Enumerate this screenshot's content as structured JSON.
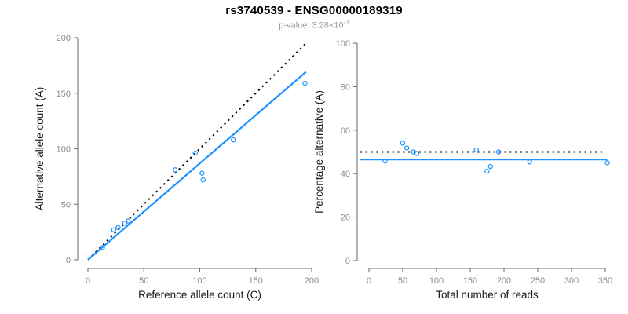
{
  "header": {
    "title": "rs3740539 - ENSG00000189319",
    "subtitle_prefix": "p-value: 3.28×10",
    "subtitle_exponent": "-3"
  },
  "colors": {
    "accent_blue": "#1E90FF",
    "dotted_black": "#000000",
    "axis_line": "#737373",
    "tick_label": "#8C8C8C",
    "axis_title": "#1A1A1A",
    "subtitle_gray": "#999999",
    "title_black": "#000000"
  },
  "chart_data": [
    {
      "name": "allele-counts-scatter",
      "type": "scatter",
      "title": "",
      "xlabel": "Reference allele count (C)",
      "ylabel": "Alternative allele count (A)",
      "xlim": [
        0,
        200
      ],
      "ylim": [
        0,
        200
      ],
      "xticks": [
        0,
        50,
        100,
        150,
        200
      ],
      "yticks": [
        0,
        50,
        100,
        150,
        200
      ],
      "grid": false,
      "legend": null,
      "marker": "open-circle",
      "points": [
        [
          13,
          11
        ],
        [
          23,
          27
        ],
        [
          27,
          29
        ],
        [
          33,
          33
        ],
        [
          36,
          35
        ],
        [
          78,
          81
        ],
        [
          96,
          96
        ],
        [
          102,
          78
        ],
        [
          103,
          72
        ],
        [
          130,
          108
        ],
        [
          194,
          159
        ]
      ],
      "lines": [
        {
          "name": "identity-line",
          "style": "dotted",
          "color": "#000000",
          "slope": 1,
          "intercept": 0,
          "x_span": [
            0,
            196
          ]
        },
        {
          "name": "fitted-line",
          "style": "solid",
          "color": "#1E90FF",
          "slope": 0.868,
          "intercept": 0,
          "x_span": [
            0,
            195
          ]
        }
      ]
    },
    {
      "name": "percentage-vs-reads-scatter",
      "type": "scatter",
      "title": "",
      "xlabel": "Total number of reads",
      "ylabel": "Percentage alternative (A)",
      "xlim": [
        0,
        350
      ],
      "ylim": [
        0,
        100
      ],
      "xticks": [
        0,
        50,
        100,
        150,
        200,
        250,
        300,
        350
      ],
      "yticks": [
        0,
        20,
        40,
        60,
        80,
        100
      ],
      "grid": false,
      "legend": null,
      "marker": "open-circle",
      "points": [
        [
          24,
          45.8
        ],
        [
          50,
          54
        ],
        [
          56,
          51.8
        ],
        [
          66,
          50
        ],
        [
          71,
          49.3
        ],
        [
          159,
          50.9
        ],
        [
          175,
          41.1
        ],
        [
          180,
          43.3
        ],
        [
          192,
          50
        ],
        [
          238,
          45.4
        ],
        [
          353,
          45
        ]
      ],
      "lines": [
        {
          "name": "expected-50pct-line",
          "style": "dotted",
          "color": "#000000",
          "slope": 0,
          "intercept": 50,
          "x_span": [
            -13,
            349
          ]
        },
        {
          "name": "fitted-percentage-line",
          "style": "solid",
          "color": "#1E90FF",
          "slope": 0,
          "intercept": 46.5,
          "x_span": [
            -13,
            353
          ]
        }
      ]
    }
  ]
}
